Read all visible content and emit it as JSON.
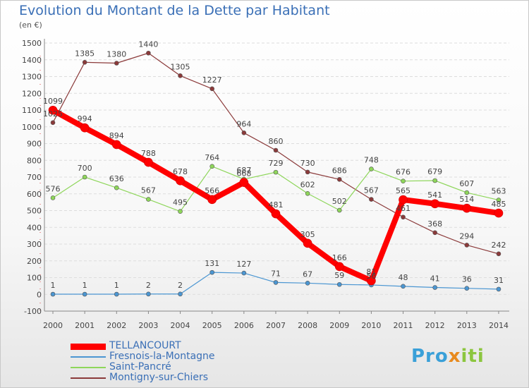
{
  "chart_data": {
    "type": "line",
    "title": "Evolution du Montant de la Dette par Habitant",
    "subtitle": "(en €)",
    "x": [
      "2000",
      "2001",
      "2002",
      "2003",
      "2004",
      "2005",
      "2006",
      "2007",
      "2008",
      "2009",
      "2010",
      "2011",
      "2012",
      "2013",
      "2014"
    ],
    "ylim": [
      -100,
      1500
    ],
    "yticks": [
      -100,
      0,
      100,
      200,
      300,
      400,
      500,
      600,
      700,
      800,
      900,
      1000,
      1100,
      1200,
      1300,
      1400,
      1500
    ],
    "grid": "horizontal dashed",
    "legend_position": "bottom-left",
    "series": [
      {
        "name": "TELLANCOURT",
        "color": "#ff0000",
        "values": [
          1099,
          994,
          894,
          788,
          678,
          566,
          668,
          481,
          305,
          166,
          81,
          565,
          541,
          514,
          485
        ],
        "labels": [
          "1099",
          "994",
          "894",
          "788",
          "678",
          "566",
          "668",
          "481",
          "305",
          "166",
          "81",
          "565",
          "541",
          "514",
          "485"
        ]
      },
      {
        "name": "Fresnois-la-Montagne",
        "color": "#4b96d2",
        "values": [
          1,
          1,
          1,
          2,
          2,
          131,
          127,
          71,
          67,
          59,
          56,
          48,
          41,
          36,
          31
        ],
        "labels": [
          "1",
          "1",
          "1",
          "2",
          "2",
          "131",
          "127",
          "71",
          "67",
          "59",
          "56",
          "48",
          "41",
          "36",
          "31"
        ]
      },
      {
        "name": "Saint-Pancré",
        "color": "#8ed65a",
        "values": [
          576,
          700,
          636,
          567,
          495,
          764,
          687,
          729,
          602,
          502,
          748,
          676,
          679,
          607,
          563
        ],
        "labels": [
          "576",
          "700",
          "636",
          "567",
          "495",
          "764",
          "687",
          "729",
          "602",
          "502",
          "748",
          "676",
          "679",
          "607",
          "563"
        ]
      },
      {
        "name": "Montigny-sur-Chiers",
        "color": "#8b3a3a",
        "values": [
          1025,
          1385,
          1380,
          1440,
          1305,
          1227,
          964,
          860,
          730,
          686,
          567,
          461,
          368,
          294,
          242
        ],
        "labels": [
          "1025",
          "1385",
          "1380",
          "1440",
          "1305",
          "1227",
          "964",
          "860",
          "730",
          "686",
          "567",
          "461",
          "368",
          "294",
          "242"
        ]
      }
    ]
  },
  "logo": {
    "part1": "Pro",
    "part2": "x",
    "part3": "iti"
  }
}
